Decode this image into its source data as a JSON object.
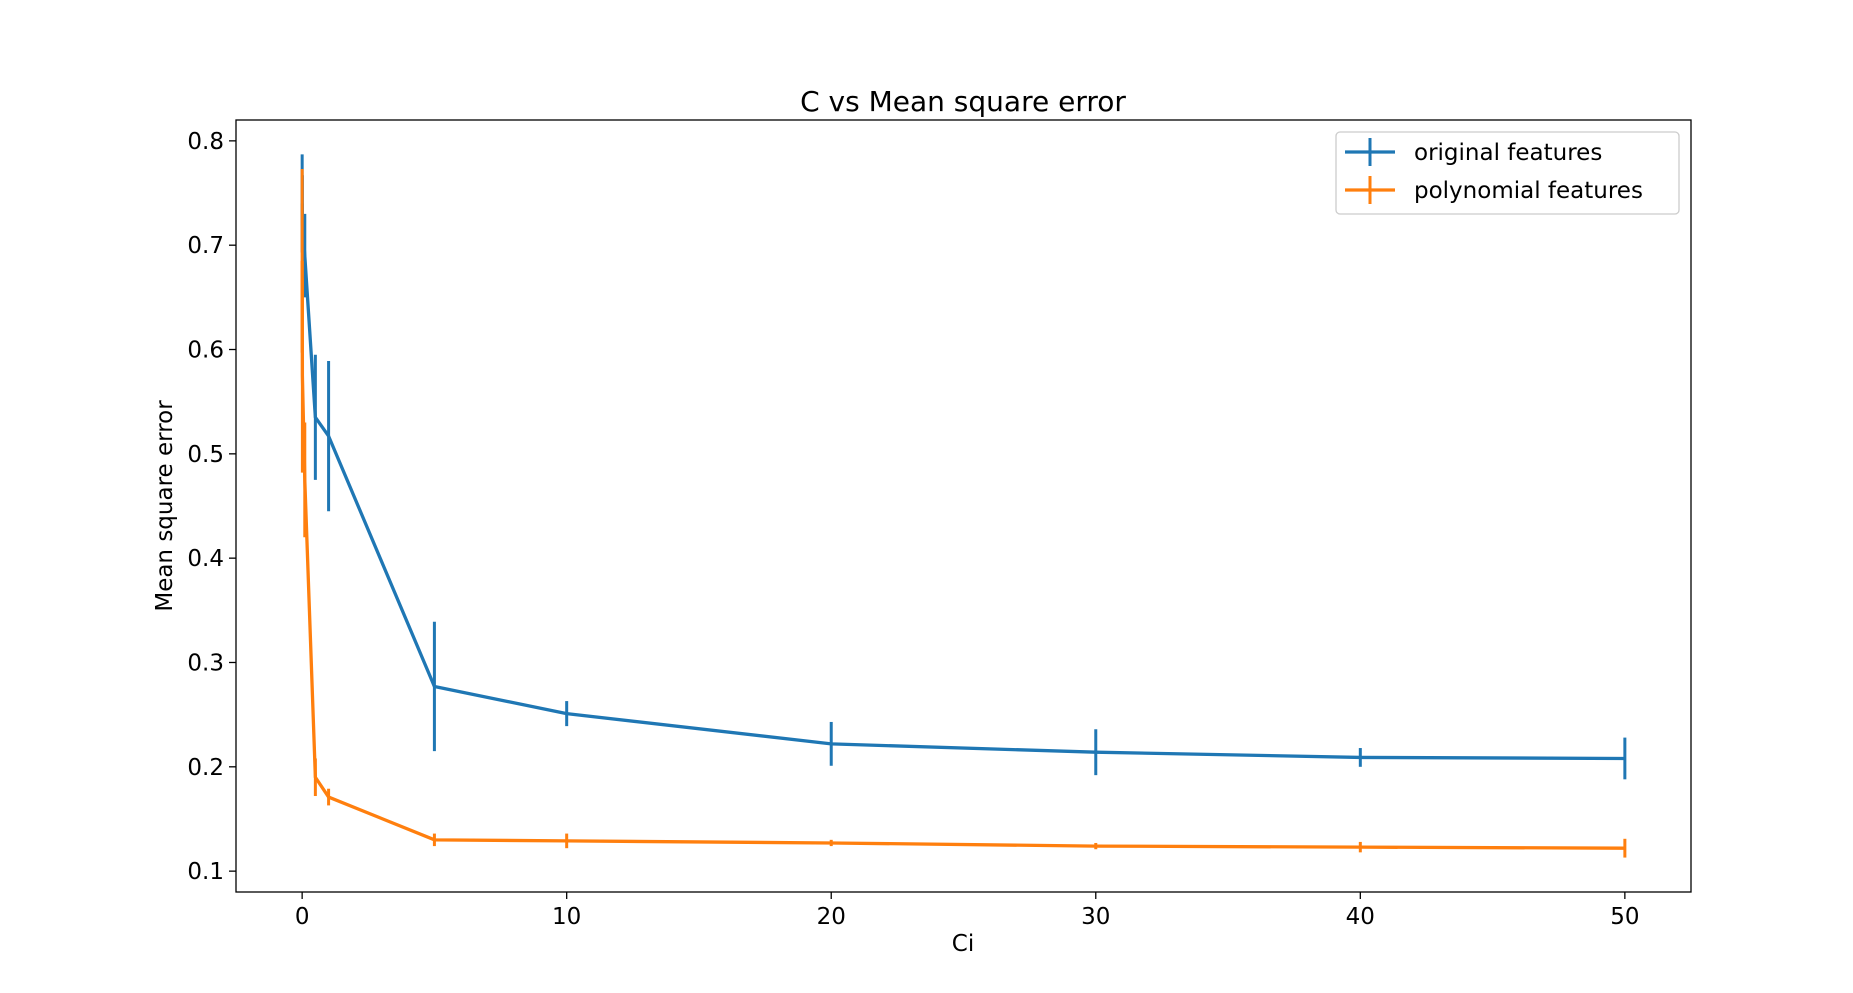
{
  "chart_data": {
    "type": "line",
    "title": "C vs Mean square error",
    "xlabel": "Ci",
    "ylabel": "Mean square error",
    "xlim": [
      -2.5,
      52.5
    ],
    "ylim": [
      0.08,
      0.82
    ],
    "x_ticks": [
      0,
      10,
      20,
      30,
      40,
      50
    ],
    "x_tick_labels": [
      "0",
      "10",
      "20",
      "30",
      "40",
      "50"
    ],
    "y_ticks": [
      0.1,
      0.2,
      0.3,
      0.4,
      0.5,
      0.6,
      0.7,
      0.8
    ],
    "y_tick_labels": [
      "0.1",
      "0.2",
      "0.3",
      "0.4",
      "0.5",
      "0.6",
      "0.7",
      "0.8"
    ],
    "grid": false,
    "legend_position": "top-right",
    "error_bars": true,
    "series": [
      {
        "name": "original features",
        "color": "#1f77b4",
        "x": [
          0.001,
          0.01,
          0.1,
          0.5,
          1,
          5,
          10,
          20,
          30,
          40,
          50
        ],
        "y": [
          0.74,
          0.72,
          0.69,
          0.535,
          0.517,
          0.277,
          0.251,
          0.222,
          0.214,
          0.209,
          0.208
        ],
        "yerr": [
          0.047,
          0.047,
          0.04,
          0.06,
          0.072,
          0.062,
          0.012,
          0.021,
          0.022,
          0.009,
          0.02
        ]
      },
      {
        "name": "polynomial features",
        "color": "#ff7f0e",
        "x": [
          0.001,
          0.01,
          0.1,
          0.5,
          1,
          5,
          10,
          20,
          30,
          40,
          50
        ],
        "y": [
          0.685,
          0.575,
          0.475,
          0.19,
          0.171,
          0.13,
          0.129,
          0.127,
          0.124,
          0.123,
          0.122
        ],
        "yerr": [
          0.088,
          0.093,
          0.055,
          0.018,
          0.008,
          0.006,
          0.007,
          0.003,
          0.003,
          0.005,
          0.009
        ]
      }
    ]
  }
}
